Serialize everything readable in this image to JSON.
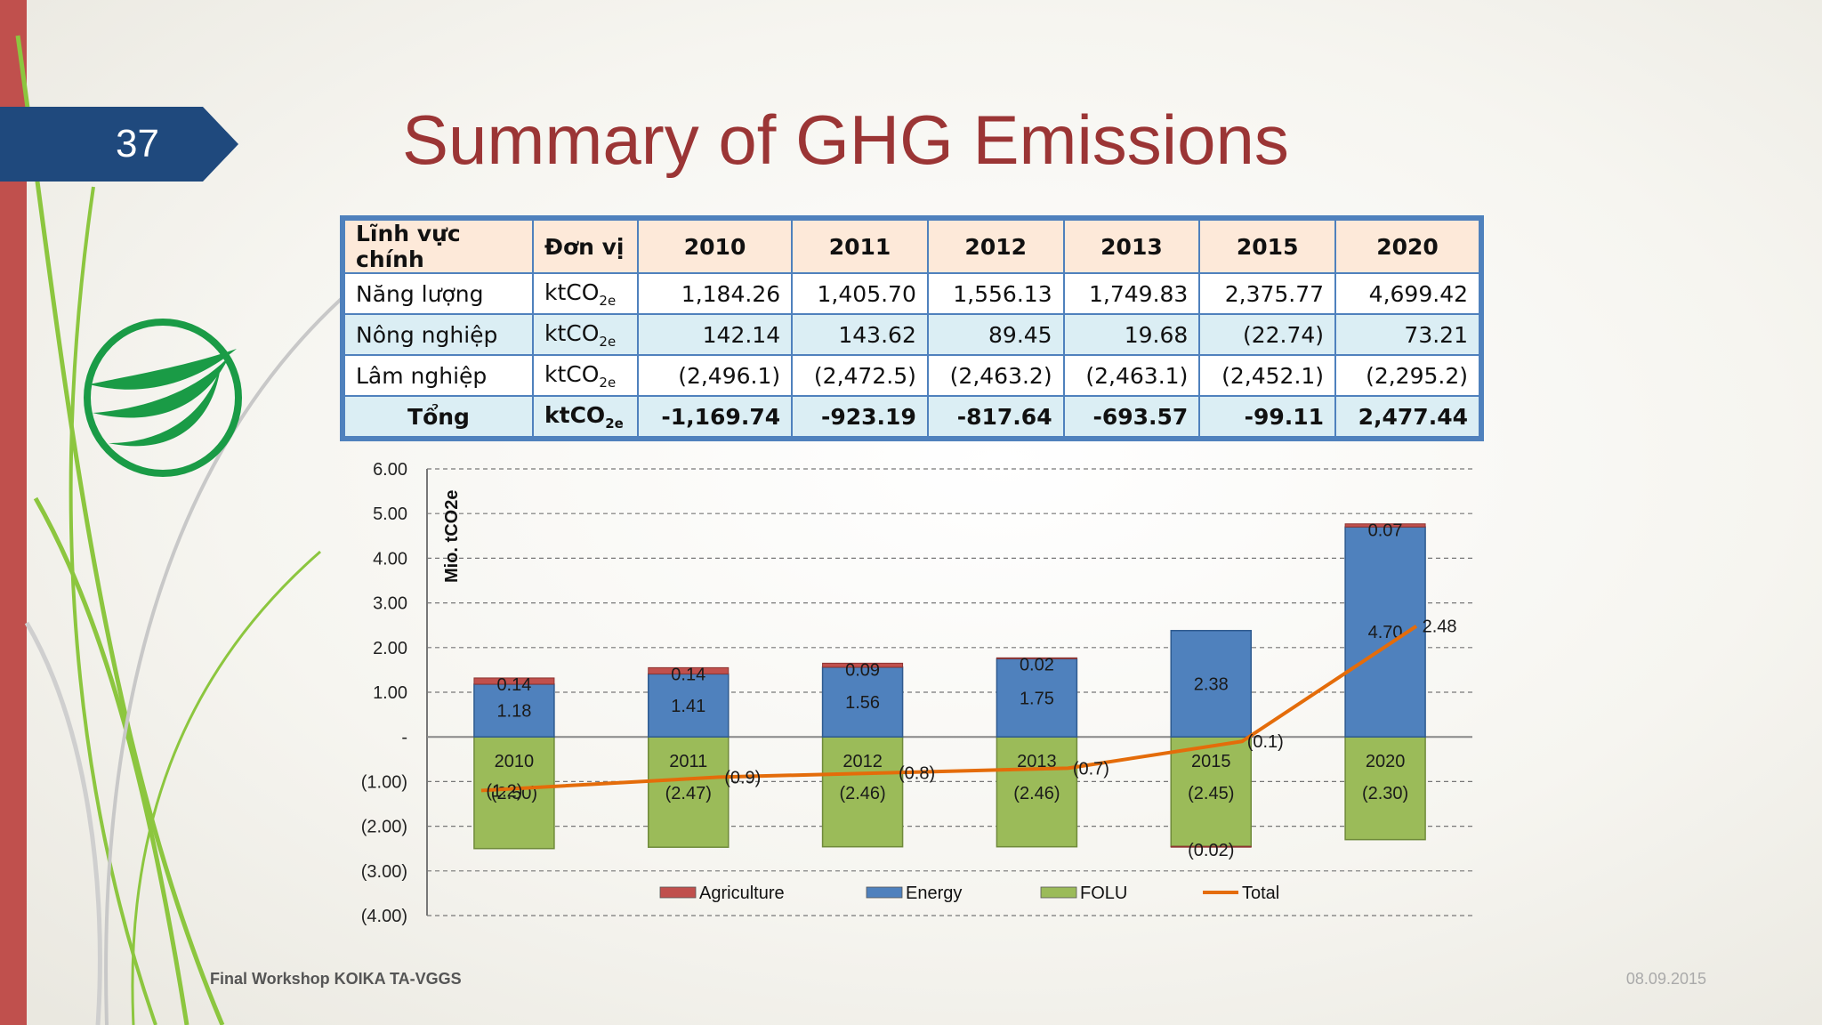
{
  "slide": {
    "page_number": "37",
    "title": "Summary of GHG Emissions",
    "footer_left": "Final Workshop KOIKA TA-VGGS",
    "footer_right": "08.09.2015"
  },
  "colors": {
    "accent_red": "#c0504d",
    "badge_blue": "#1f497d",
    "title_red": "#9b3535",
    "agriculture": "#c0504d",
    "energy": "#4f81bd",
    "folu": "#9bbb59",
    "total": "#e46c0a"
  },
  "table": {
    "headers": [
      "Lĩnh vực chính",
      "Đơn vị",
      "2010",
      "2011",
      "2012",
      "2013",
      "2015",
      "2020"
    ],
    "rows": [
      {
        "sector": "Năng lượng",
        "unit": "ktCO",
        "unit_sub": "2e",
        "values": [
          "1,184.26",
          "1,405.70",
          "1,556.13",
          "1,749.83",
          "2,375.77",
          "4,699.42"
        ]
      },
      {
        "sector": "Nông nghiệp",
        "unit": "ktCO",
        "unit_sub": "2e",
        "values": [
          "142.14",
          "143.62",
          "89.45",
          "19.68",
          "(22.74)",
          "73.21"
        ]
      },
      {
        "sector": "Lâm nghiệp",
        "unit": "ktCO",
        "unit_sub": "2e",
        "values": [
          "(2,496.1)",
          "(2,472.5)",
          "(2,463.2)",
          "(2,463.1)",
          "(2,452.1)",
          "(2,295.2)"
        ]
      },
      {
        "sector": "Tổng",
        "unit": "ktCO",
        "unit_sub": "2e",
        "values": [
          "-1,169.74",
          "-923.19",
          "-817.64",
          "-693.57",
          "-99.11",
          "2,477.44"
        ]
      }
    ]
  },
  "chart_data": {
    "type": "bar",
    "stacked": true,
    "categories": [
      "2010",
      "2011",
      "2012",
      "2013",
      "2015",
      "2020"
    ],
    "ylabel": "Mio. tCO2e",
    "ylim": [
      -4,
      6
    ],
    "yticks": [
      "6.00",
      "5.00",
      "4.00",
      "3.00",
      "2.00",
      "1.00",
      "-",
      "(1.00)",
      "(2.00)",
      "(3.00)",
      "(4.00)"
    ],
    "grid": true,
    "legend_position": "bottom",
    "series": [
      {
        "name": "Agriculture",
        "type": "bar",
        "values": [
          0.14,
          0.14,
          0.09,
          0.02,
          -0.02,
          0.07
        ],
        "labels": [
          "0.14",
          "0.14",
          "0.09",
          "0.02",
          "(0.02)",
          "0.07"
        ]
      },
      {
        "name": "Energy",
        "type": "bar",
        "values": [
          1.18,
          1.41,
          1.56,
          1.75,
          2.38,
          4.7
        ],
        "labels": [
          "1.18",
          "1.41",
          "1.56",
          "1.75",
          "2.38",
          "4.70"
        ]
      },
      {
        "name": "FOLU",
        "type": "bar",
        "values": [
          -2.5,
          -2.47,
          -2.46,
          -2.46,
          -2.45,
          -2.3
        ],
        "labels": [
          "(2.50)",
          "(2.47)",
          "(2.46)",
          "(2.46)",
          "(2.45)",
          "(2.30)"
        ]
      },
      {
        "name": "Total",
        "type": "line",
        "values": [
          -1.2,
          -0.9,
          -0.8,
          -0.7,
          -0.1,
          2.48
        ],
        "labels": [
          "(1.2)",
          "(0.9)",
          "(0.8)",
          "(0.7)",
          "(0.1)",
          "2.48"
        ]
      }
    ]
  }
}
